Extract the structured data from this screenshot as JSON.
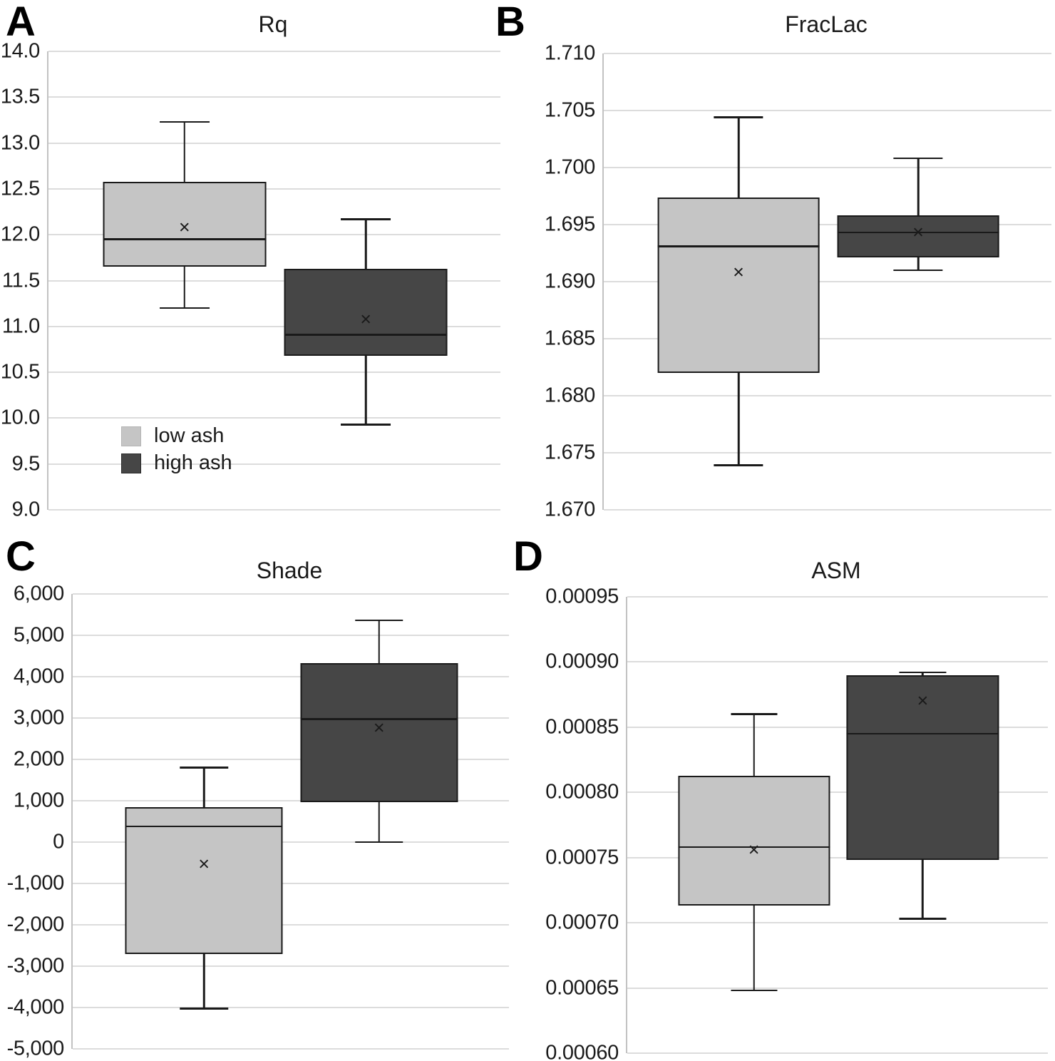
{
  "figure": {
    "background": "#ffffff",
    "mean_marker": "×",
    "colors": {
      "low_ash_fill": "#c5c5c5",
      "high_ash_fill": "#464646",
      "box_border": "#1a1a1a",
      "gridline": "#dcdcdc",
      "axis_line": "#c2c2c2",
      "text": "#1a1a1a"
    },
    "legend": {
      "items": [
        {
          "label": "low ash",
          "color_key": "low_ash_fill"
        },
        {
          "label": "high ash",
          "color_key": "high_ash_fill"
        }
      ]
    }
  },
  "chart_data": [
    {
      "panel": "A",
      "title": "Rq",
      "type": "box",
      "ylim": [
        9.0,
        14.0
      ],
      "ytick_step": 0.5,
      "grid": true,
      "legend_position": "lower-left-inside",
      "yticks": [
        "14.0",
        "13.5",
        "13.0",
        "12.5",
        "12.0",
        "11.5",
        "11.0",
        "10.5",
        "10.0",
        "9.5",
        "9.0"
      ],
      "series": [
        {
          "name": "low ash",
          "whisker_low": 11.2,
          "q1": 11.65,
          "median": 11.95,
          "mean": 12.08,
          "q3": 12.58,
          "whisker_high": 13.23
        },
        {
          "name": "high ash",
          "whisker_low": 9.93,
          "q1": 10.68,
          "median": 10.91,
          "mean": 11.08,
          "q3": 11.63,
          "whisker_high": 12.17
        }
      ]
    },
    {
      "panel": "B",
      "title": "FracLac",
      "type": "box",
      "ylim": [
        1.67,
        1.71
      ],
      "ytick_step": 0.005,
      "grid": true,
      "legend_position": "none",
      "yticks": [
        "1.710",
        "1.705",
        "1.700",
        "1.695",
        "1.690",
        "1.685",
        "1.680",
        "1.675",
        "1.670"
      ],
      "series": [
        {
          "name": "low ash",
          "whisker_low": 1.6739,
          "q1": 1.682,
          "median": 1.6931,
          "mean": 1.6908,
          "q3": 1.6974,
          "whisker_high": 1.7044
        },
        {
          "name": "high ash",
          "whisker_low": 1.691,
          "q1": 1.6921,
          "median": 1.6943,
          "mean": 1.6943,
          "q3": 1.6958,
          "whisker_high": 1.7008
        }
      ]
    },
    {
      "panel": "C",
      "title": "Shade",
      "type": "box",
      "ylim": [
        -5000,
        6000
      ],
      "ytick_step": 1000,
      "grid": true,
      "legend_position": "none",
      "yticks": [
        "6,000",
        "5,000",
        "4,000",
        "3,000",
        "2,000",
        "1,000",
        "0",
        "-1,000",
        "-2,000",
        "-3,000",
        "-4,000",
        "-5,000"
      ],
      "series": [
        {
          "name": "low ash",
          "whisker_low": -4030,
          "q1": -2710,
          "median": 380,
          "mean": -530,
          "q3": 840,
          "whisker_high": 1800
        },
        {
          "name": "high ash",
          "whisker_low": 0,
          "q1": 960,
          "median": 2970,
          "mean": 2760,
          "q3": 4330,
          "whisker_high": 5360
        }
      ]
    },
    {
      "panel": "D",
      "title": "ASM",
      "type": "box",
      "ylim": [
        0.0006,
        0.00095
      ],
      "ytick_step": 5e-05,
      "grid": true,
      "legend_position": "none",
      "yticks": [
        "0.00095",
        "0.00090",
        "0.00085",
        "0.00080",
        "0.00075",
        "0.00070",
        "0.00065",
        "0.00060"
      ],
      "series": [
        {
          "name": "low ash",
          "whisker_low": 0.000648,
          "q1": 0.000713,
          "median": 0.000758,
          "mean": 0.000756,
          "q3": 0.000813,
          "whisker_high": 0.00086
        },
        {
          "name": "high ash",
          "whisker_low": 0.000703,
          "q1": 0.000748,
          "median": 0.000845,
          "mean": 0.00087,
          "q3": 0.00089,
          "whisker_high": 0.000892
        }
      ]
    }
  ]
}
